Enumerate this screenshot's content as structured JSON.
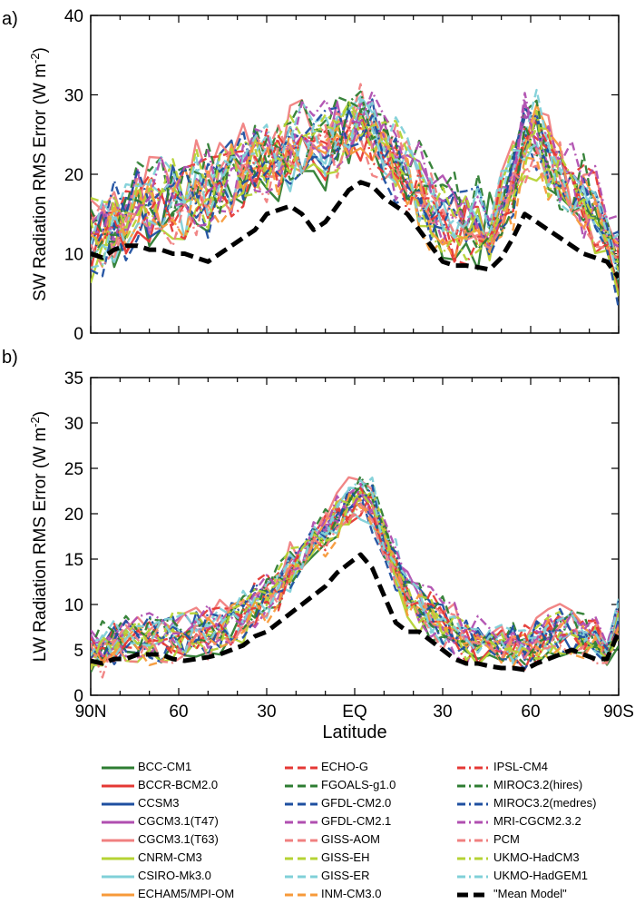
{
  "chart_data": [
    {
      "type": "line",
      "panel_label": "a)",
      "ylabel": "SW Radiation RMS Error (W m",
      "ylabel_sup": "-2",
      "ylabel_close": ")",
      "ylim": [
        0,
        40
      ],
      "yticks": [
        0,
        10,
        20,
        30,
        40
      ],
      "xlim": [
        90,
        -90
      ],
      "xtick_values": [
        90,
        60,
        30,
        0,
        -30,
        -60,
        -90
      ],
      "mean_model": {
        "name": "\"Mean Model\"",
        "x": [
          90,
          86,
          82,
          78,
          74,
          70,
          66,
          62,
          58,
          54,
          50,
          46,
          42,
          38,
          34,
          30,
          26,
          22,
          18,
          14,
          10,
          6,
          2,
          -2,
          -6,
          -10,
          -14,
          -18,
          -22,
          -26,
          -30,
          -34,
          -38,
          -42,
          -46,
          -50,
          -54,
          -58,
          -62,
          -66,
          -70,
          -74,
          -78,
          -82,
          -86,
          -90
        ],
        "y": [
          10,
          9.5,
          10.5,
          11,
          11,
          10.5,
          10.5,
          10,
          10,
          9.5,
          9,
          10,
          11,
          12,
          13,
          15,
          15.5,
          16,
          15,
          13,
          14,
          16,
          18,
          19,
          18.5,
          17,
          16,
          15,
          13,
          11,
          9,
          8.5,
          8.5,
          8.3,
          8,
          9.5,
          12,
          15,
          14,
          13,
          12,
          11,
          10,
          9.5,
          9,
          7
        ]
      }
    },
    {
      "type": "line",
      "panel_label": "b)",
      "ylabel": "LW Radiation RMS Error (W m",
      "ylabel_sup": "-2",
      "ylabel_close": ")",
      "ylim": [
        0,
        35
      ],
      "yticks": [
        0,
        5,
        10,
        15,
        20,
        25,
        30,
        35
      ],
      "xlim": [
        90,
        -90
      ],
      "xtick_values": [
        90,
        60,
        30,
        0,
        -30,
        -60,
        -90
      ],
      "xlabel": "Latitude",
      "xticklabels": [
        "90N",
        "60",
        "30",
        "EQ",
        "30",
        "60",
        "90S"
      ],
      "mean_model": {
        "name": "\"Mean Model\"",
        "x": [
          90,
          86,
          82,
          78,
          74,
          70,
          66,
          62,
          58,
          54,
          50,
          46,
          42,
          38,
          34,
          30,
          26,
          22,
          18,
          14,
          10,
          6,
          2,
          -2,
          -6,
          -10,
          -14,
          -18,
          -22,
          -26,
          -30,
          -34,
          -38,
          -42,
          -46,
          -50,
          -54,
          -58,
          -62,
          -66,
          -70,
          -74,
          -78,
          -82,
          -86,
          -90
        ],
        "y": [
          3.8,
          3.5,
          4,
          4,
          4.5,
          4.5,
          4.5,
          4,
          3.8,
          4,
          4.2,
          4.5,
          5,
          5.5,
          6.5,
          7,
          8,
          9,
          10,
          11,
          12,
          13.5,
          14.5,
          15.5,
          14,
          11,
          8,
          7,
          7,
          6,
          5,
          4,
          3.5,
          3.5,
          3.2,
          3,
          3,
          2.8,
          3.5,
          4,
          4.5,
          5,
          4.5,
          4,
          4,
          7
        ]
      }
    }
  ],
  "legend": [
    {
      "name": "BCC-CM1",
      "color": "#2e7d32",
      "dash": "solid"
    },
    {
      "name": "BCCR-BCM2.0",
      "color": "#e53935",
      "dash": "solid"
    },
    {
      "name": "CCSM3",
      "color": "#1e4fa0",
      "dash": "solid"
    },
    {
      "name": "CGCM3.1(T47)",
      "color": "#b04fb0",
      "dash": "solid"
    },
    {
      "name": "CGCM3.1(T63)",
      "color": "#f08080",
      "dash": "solid"
    },
    {
      "name": "CNRM-CM3",
      "color": "#b5d334",
      "dash": "solid"
    },
    {
      "name": "CSIRO-Mk3.0",
      "color": "#80d0d8",
      "dash": "solid"
    },
    {
      "name": "ECHAM5/MPI-OM",
      "color": "#f79a3a",
      "dash": "solid"
    },
    {
      "name": "ECHO-G",
      "color": "#e53935",
      "dash": "dashed"
    },
    {
      "name": "FGOALS-g1.0",
      "color": "#2e7d32",
      "dash": "dashed"
    },
    {
      "name": "GFDL-CM2.0",
      "color": "#1e4fa0",
      "dash": "dashed"
    },
    {
      "name": "GFDL-CM2.1",
      "color": "#b04fb0",
      "dash": "dashed"
    },
    {
      "name": "GISS-AOM",
      "color": "#f08080",
      "dash": "dashed"
    },
    {
      "name": "GISS-EH",
      "color": "#b5d334",
      "dash": "dashed"
    },
    {
      "name": "GISS-ER",
      "color": "#80d0d8",
      "dash": "dashed"
    },
    {
      "name": "INM-CM3.0",
      "color": "#f79a3a",
      "dash": "dashed"
    },
    {
      "name": "IPSL-CM4",
      "color": "#e53935",
      "dash": "dashdot"
    },
    {
      "name": "MIROC3.2(hires)",
      "color": "#2e7d32",
      "dash": "dashdot"
    },
    {
      "name": "MIROC3.2(medres)",
      "color": "#1e4fa0",
      "dash": "dashdot"
    },
    {
      "name": "MRI-CGCM2.3.2",
      "color": "#b04fb0",
      "dash": "dashdot"
    },
    {
      "name": "PCM",
      "color": "#f08080",
      "dash": "dashdot"
    },
    {
      "name": "UKMO-HadCM3",
      "color": "#b5d334",
      "dash": "dashdot"
    },
    {
      "name": "UKMO-HadGEM1",
      "color": "#80d0d8",
      "dash": "dashdot"
    },
    {
      "name": "\"Mean Model\"",
      "color": "#000000",
      "dash": "thickdash"
    }
  ]
}
